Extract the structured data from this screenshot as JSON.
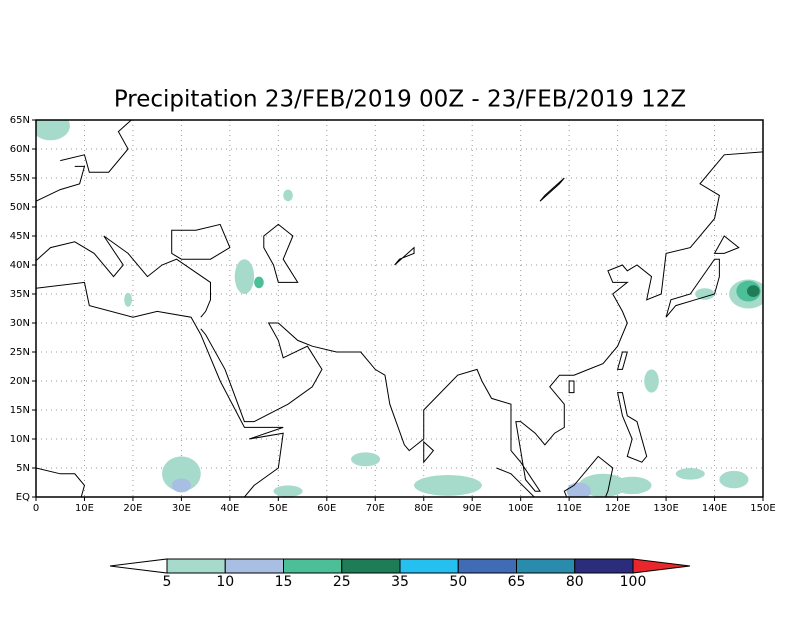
{
  "map": {
    "title": "Precipitation 23/FEB/2019 00Z - 23/FEB/2019 12Z",
    "lat_ticks": [
      {
        "value": 0,
        "label": "EQ"
      },
      {
        "value": 5,
        "label": "5N"
      },
      {
        "value": 10,
        "label": "10N"
      },
      {
        "value": 15,
        "label": "15N"
      },
      {
        "value": 20,
        "label": "20N"
      },
      {
        "value": 25,
        "label": "25N"
      },
      {
        "value": 30,
        "label": "30N"
      },
      {
        "value": 35,
        "label": "35N"
      },
      {
        "value": 40,
        "label": "40N"
      },
      {
        "value": 45,
        "label": "45N"
      },
      {
        "value": 50,
        "label": "50N"
      },
      {
        "value": 55,
        "label": "55N"
      },
      {
        "value": 60,
        "label": "60N"
      },
      {
        "value": 65,
        "label": "65N"
      }
    ],
    "lon_ticks": [
      0,
      {
        "value": 10,
        "label": "10E"
      },
      {
        "value": 20,
        "label": "20E"
      },
      {
        "value": 30,
        "label": "30E"
      },
      {
        "value": 40,
        "label": "40E"
      },
      {
        "value": 50,
        "label": "50E"
      },
      {
        "value": 60,
        "label": "60E"
      },
      {
        "value": 70,
        "label": "70E"
      },
      {
        "value": 80,
        "label": "80E"
      },
      {
        "value": 90,
        "label": "90E"
      },
      {
        "value": 100,
        "label": "100E"
      },
      {
        "value": 110,
        "label": "110E"
      },
      {
        "value": 120,
        "label": "120E"
      },
      {
        "value": 130,
        "label": "130E"
      },
      {
        "value": 140,
        "label": "140E"
      },
      {
        "value": 150,
        "label": "150E"
      }
    ],
    "lonlim": [
      0,
      150
    ],
    "latlim": [
      0,
      65
    ],
    "colorbar": {
      "levels": [
        5,
        10,
        15,
        25,
        35,
        50,
        65,
        80,
        100
      ],
      "colors": [
        "#a6dbcc",
        "#a8bfe3",
        "#4dbf98",
        "#1e7d57",
        "#25c0ef",
        "#3f6cb5",
        "#2a8cac",
        "#2c2c7c"
      ],
      "under_color": "#ffffff",
      "over_color": "#e8262b"
    }
  }
}
